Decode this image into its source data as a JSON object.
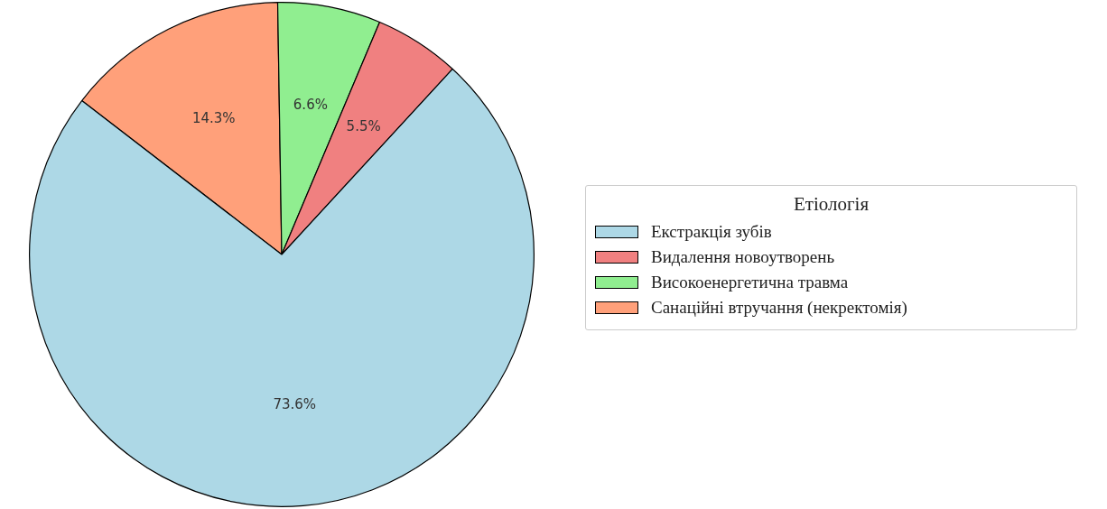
{
  "chart_data": {
    "type": "pie",
    "legend_title": "Етіологія",
    "legend": "right",
    "categories": [
      "Екстракція зубів",
      "Видалення новоутворень",
      "Високоенергетична травма",
      "Санаційні втручання (некректомія)"
    ],
    "values": [
      73.6,
      5.5,
      6.6,
      14.3
    ],
    "colors": [
      "#add8e6",
      "#f08080",
      "#90ee90",
      "#ffa07a"
    ],
    "value_labels": [
      "73.6%",
      "5.5%",
      "6.6%",
      "14.3%"
    ]
  }
}
